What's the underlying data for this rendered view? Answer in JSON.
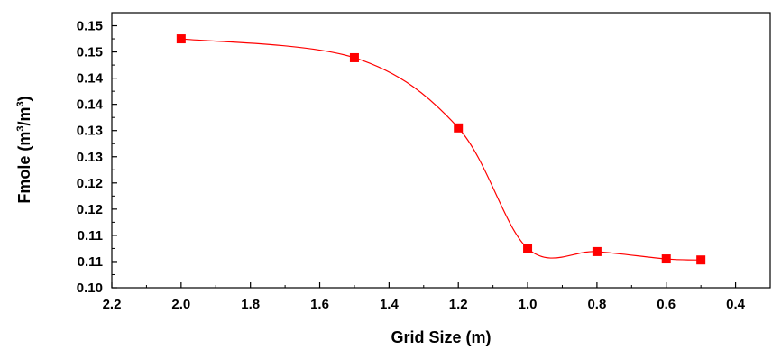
{
  "chart_data": {
    "type": "line",
    "x": [
      2.0,
      1.5,
      1.2,
      1.0,
      0.8,
      0.6,
      0.5
    ],
    "series": [
      {
        "values": [
          0.1475,
          0.1439,
          0.1305,
          0.1075,
          0.1069,
          0.1055,
          0.1053
        ],
        "color": "#ff0000",
        "marker": "square",
        "smoothed": true
      }
    ],
    "xlabel": "Grid Size (m)",
    "ylabel": {
      "prefix": "Fmole (m",
      "sup1": "3",
      "middle": "/m",
      "sup2": "3",
      "suffix": ")"
    },
    "xlim": [
      2.2,
      0.3
    ],
    "ylim": [
      0.1,
      0.1525
    ],
    "x_reversed": true,
    "x_ticks": [
      2.2,
      2.0,
      1.8,
      1.6,
      1.4,
      1.2,
      1.0,
      0.8,
      0.6,
      0.4
    ],
    "x_tick_labels": [
      "2.2",
      "2.0",
      "1.8",
      "1.6",
      "1.4",
      "1.2",
      "1.0",
      "0.8",
      "0.6",
      "0.4"
    ],
    "y_ticks": [
      0.1,
      0.105,
      0.11,
      0.115,
      0.12,
      0.125,
      0.13,
      0.135,
      0.14,
      0.145,
      0.15
    ],
    "y_tick_labels": [
      "0.10",
      "0.11",
      "0.11",
      "0.12",
      "0.12",
      "0.13",
      "0.13",
      "0.14",
      "0.14",
      "0.15",
      "0.15"
    ],
    "grid": false,
    "legend": "none"
  }
}
